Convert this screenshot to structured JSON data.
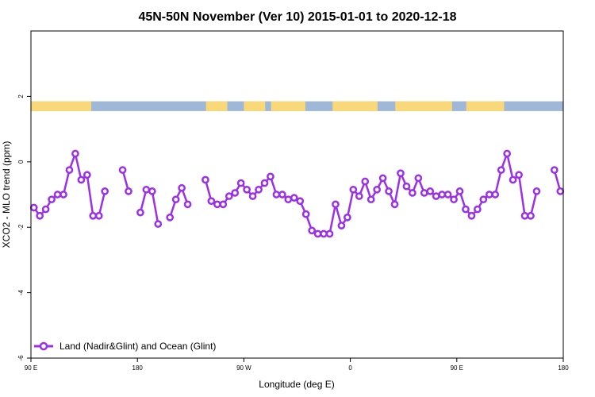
{
  "chart_data": {
    "type": "line",
    "title": "45N-50N November (Ver 10)   2015-01-01 to 2020-12-18",
    "xlabel": "Longitude (deg E)",
    "ylabel": "XCO2 - MLO trend (ppm)",
    "xlim": [
      90,
      540
    ],
    "ylim": [
      -6,
      4
    ],
    "x_ticks": [
      {
        "value": 90,
        "label": "90 E"
      },
      {
        "value": 180,
        "label": "180"
      },
      {
        "value": 270,
        "label": "90 W"
      },
      {
        "value": 360,
        "label": "0"
      },
      {
        "value": 450,
        "label": "90 E"
      },
      {
        "value": 540,
        "label": "180"
      }
    ],
    "y_ticks": [
      {
        "value": -6,
        "label": "-6"
      },
      {
        "value": -4,
        "label": "-4"
      },
      {
        "value": -2,
        "label": "-2"
      },
      {
        "value": 0,
        "label": "0"
      },
      {
        "value": 2,
        "label": "2"
      }
    ],
    "grid": false,
    "legend_position": "bottom-left",
    "series": [
      {
        "name": "Land (Nadir&Glint) and Ocean (Glint)",
        "color": "#9b30e8",
        "points": [
          [
            92.5,
            -1.4
          ],
          [
            97.5,
            -1.65
          ],
          [
            102.5,
            -1.45
          ],
          [
            107.5,
            -1.15
          ],
          [
            112.5,
            -1.0
          ],
          [
            117.5,
            -1.0
          ],
          [
            122.5,
            -0.25
          ],
          [
            127.5,
            0.25
          ],
          [
            132.5,
            -0.55
          ],
          [
            137.5,
            -0.4
          ],
          [
            142.5,
            -1.65
          ],
          [
            147.5,
            -1.65
          ],
          [
            152.5,
            -0.9
          ],
          [
            157.5,
            null
          ],
          [
            162.5,
            null
          ],
          [
            167.5,
            -0.25
          ],
          [
            172.5,
            -0.9
          ],
          [
            177.5,
            null
          ],
          [
            182.5,
            -1.55
          ],
          [
            187.5,
            -0.85
          ],
          [
            192.5,
            -0.9
          ],
          [
            197.5,
            -1.9
          ],
          [
            202.5,
            null
          ],
          [
            207.5,
            -1.7
          ],
          [
            212.5,
            -1.15
          ],
          [
            217.5,
            -0.8
          ],
          [
            222.5,
            -1.3
          ],
          [
            227.5,
            null
          ],
          [
            232.5,
            null
          ],
          [
            237.5,
            -0.55
          ],
          [
            242.5,
            -1.2
          ],
          [
            247.5,
            -1.3
          ],
          [
            252.5,
            -1.3
          ],
          [
            257.5,
            -1.05
          ],
          [
            262.5,
            -0.95
          ],
          [
            267.5,
            -0.65
          ],
          [
            272.5,
            -0.85
          ],
          [
            277.5,
            -1.05
          ],
          [
            282.5,
            -0.85
          ],
          [
            287.5,
            -0.65
          ],
          [
            292.5,
            -0.45
          ],
          [
            297.5,
            -1.0
          ],
          [
            302.5,
            -1.0
          ],
          [
            307.5,
            -1.15
          ],
          [
            312.5,
            -1.1
          ],
          [
            317.5,
            -1.2
          ],
          [
            322.5,
            -1.6
          ],
          [
            327.5,
            -2.1
          ],
          [
            332.5,
            -2.2
          ],
          [
            337.5,
            -2.2
          ],
          [
            342.5,
            -2.2
          ],
          [
            347.5,
            -1.3
          ],
          [
            352.5,
            -1.95
          ],
          [
            357.5,
            -1.7
          ],
          [
            362.5,
            -0.85
          ],
          [
            367.5,
            -1.05
          ],
          [
            372.5,
            -0.6
          ],
          [
            377.5,
            -1.15
          ],
          [
            382.5,
            -0.85
          ],
          [
            387.5,
            -0.5
          ],
          [
            392.5,
            -0.9
          ],
          [
            397.5,
            -1.3
          ],
          [
            402.5,
            -0.35
          ],
          [
            407.5,
            -0.75
          ],
          [
            412.5,
            -0.95
          ],
          [
            417.5,
            -0.5
          ],
          [
            422.5,
            -0.95
          ],
          [
            427.5,
            -0.9
          ],
          [
            432.5,
            -1.05
          ],
          [
            437.5,
            -1.0
          ],
          [
            442.5,
            -1.0
          ],
          [
            447.5,
            -1.15
          ],
          [
            452.5,
            -0.9
          ],
          [
            457.5,
            -1.45
          ],
          [
            462.5,
            -1.65
          ],
          [
            467.5,
            -1.45
          ],
          [
            472.5,
            -1.15
          ],
          [
            477.5,
            -1.0
          ],
          [
            482.5,
            -1.0
          ],
          [
            487.5,
            -0.25
          ],
          [
            492.5,
            0.25
          ],
          [
            497.5,
            -0.55
          ],
          [
            502.5,
            -0.4
          ],
          [
            507.5,
            -1.65
          ],
          [
            512.5,
            -1.65
          ],
          [
            517.5,
            -0.9
          ],
          [
            522.5,
            null
          ],
          [
            527.5,
            null
          ],
          [
            532.5,
            -0.25
          ],
          [
            537.5,
            -0.9
          ]
        ]
      }
    ],
    "surface_strip": {
      "y_range": [
        1.55,
        1.85
      ],
      "land_color": "#f8d878",
      "ocean_color": "#a0b8d8",
      "land_segments": [
        [
          90,
          141
        ],
        [
          238,
          256
        ],
        [
          270,
          288
        ],
        [
          293,
          322
        ],
        [
          345,
          383
        ],
        [
          398,
          446
        ],
        [
          458,
          490
        ]
      ],
      "ocean_color_name": "ocean",
      "land_color_name": "land"
    }
  }
}
